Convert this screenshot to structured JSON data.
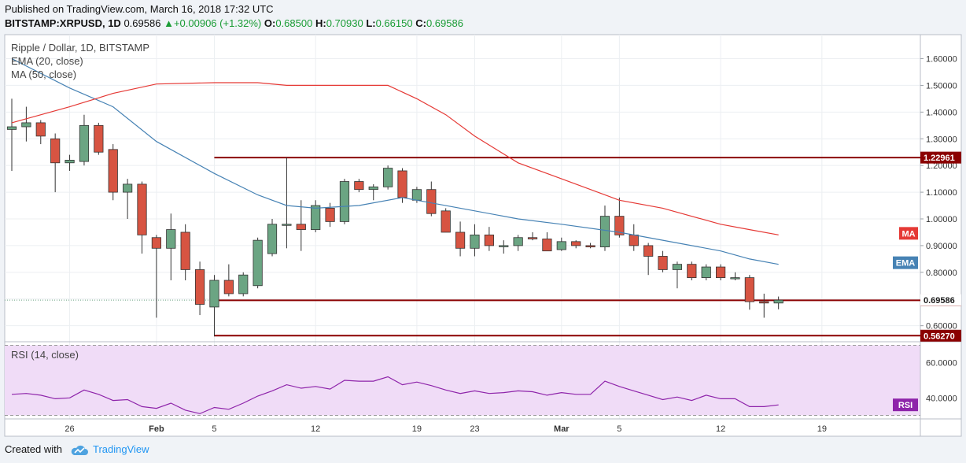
{
  "header": {
    "published": "Published on TradingView.com, March 16, 2018 17:32 UTC",
    "symbol": "BITSTAMP:XRPUSD, 1D",
    "last": "0.69586",
    "change": "+0.00906 (+1.32%)",
    "open_label": "O:",
    "open": "0.68500",
    "high_label": "H:",
    "high": "0.70930",
    "low_label": "L:",
    "low": "0.66150",
    "close_label": "C:",
    "close": "0.69586"
  },
  "legend": {
    "title": "Ripple / Dollar, 1D, BITSTAMP",
    "ema": "EMA (20, close)",
    "ma": "MA (50, close)"
  },
  "footer": {
    "created_with": "Created with",
    "brand": "TradingView"
  },
  "colors": {
    "up": "#6ba583",
    "down": "#d75442",
    "ema": "#4682b4",
    "ma": "#e53935",
    "rsi": "#8e24aa",
    "level": "#8b0000",
    "rsi_band": "#f0dcf7"
  },
  "chart_data": [
    {
      "type": "candlestick",
      "title": "Ripple / Dollar, 1D, BITSTAMP",
      "ylim": [
        0.54,
        1.69
      ],
      "xlim": [
        "2018-01-22",
        "2018-03-22"
      ],
      "y_ticks": [
        "0.60000",
        "0.70000",
        "0.80000",
        "0.90000",
        "1.00000",
        "1.10000",
        "1.20000",
        "1.30000",
        "1.40000",
        "1.50000",
        "1.60000"
      ],
      "x_ticks": [
        {
          "date": "2018-01-26",
          "label": "26"
        },
        {
          "date": "2018-02-01",
          "label": "Feb"
        },
        {
          "date": "2018-02-05",
          "label": "5"
        },
        {
          "date": "2018-02-12",
          "label": "12"
        },
        {
          "date": "2018-02-19",
          "label": "19"
        },
        {
          "date": "2018-02-23",
          "label": "23"
        },
        {
          "date": "2018-03-01",
          "label": "Mar"
        },
        {
          "date": "2018-03-05",
          "label": "5"
        },
        {
          "date": "2018-03-12",
          "label": "12"
        },
        {
          "date": "2018-03-19",
          "label": "19"
        }
      ],
      "candles": [
        {
          "date": "2018-01-22",
          "open": 1.335,
          "high": 1.45,
          "low": 1.18,
          "close": 1.345
        },
        {
          "date": "2018-01-23",
          "open": 1.345,
          "high": 1.42,
          "low": 1.29,
          "close": 1.36
        },
        {
          "date": "2018-01-24",
          "open": 1.36,
          "high": 1.37,
          "low": 1.28,
          "close": 1.31
        },
        {
          "date": "2018-01-25",
          "open": 1.3,
          "high": 1.32,
          "low": 1.1,
          "close": 1.21
        },
        {
          "date": "2018-01-26",
          "open": 1.21,
          "high": 1.24,
          "low": 1.18,
          "close": 1.22
        },
        {
          "date": "2018-01-27",
          "open": 1.215,
          "high": 1.39,
          "low": 1.2,
          "close": 1.35
        },
        {
          "date": "2018-01-28",
          "open": 1.35,
          "high": 1.36,
          "low": 1.24,
          "close": 1.25
        },
        {
          "date": "2018-01-29",
          "open": 1.26,
          "high": 1.28,
          "low": 1.07,
          "close": 1.1
        },
        {
          "date": "2018-01-30",
          "open": 1.1,
          "high": 1.15,
          "low": 1.0,
          "close": 1.13
        },
        {
          "date": "2018-01-31",
          "open": 1.13,
          "high": 1.14,
          "low": 0.87,
          "close": 0.94
        },
        {
          "date": "2018-02-01",
          "open": 0.93,
          "high": 0.94,
          "low": 0.63,
          "close": 0.89
        },
        {
          "date": "2018-02-02",
          "open": 0.89,
          "high": 1.02,
          "low": 0.77,
          "close": 0.96
        },
        {
          "date": "2018-02-03",
          "open": 0.95,
          "high": 0.98,
          "low": 0.77,
          "close": 0.81
        },
        {
          "date": "2018-02-04",
          "open": 0.81,
          "high": 0.84,
          "low": 0.64,
          "close": 0.68
        },
        {
          "date": "2018-02-05",
          "open": 0.67,
          "high": 0.79,
          "low": 0.56,
          "close": 0.77
        },
        {
          "date": "2018-02-06",
          "open": 0.77,
          "high": 0.83,
          "low": 0.71,
          "close": 0.72
        },
        {
          "date": "2018-02-07",
          "open": 0.72,
          "high": 0.8,
          "low": 0.71,
          "close": 0.79
        },
        {
          "date": "2018-02-08",
          "open": 0.75,
          "high": 0.93,
          "low": 0.74,
          "close": 0.92
        },
        {
          "date": "2018-02-09",
          "open": 0.87,
          "high": 1.0,
          "low": 0.86,
          "close": 0.98
        },
        {
          "date": "2018-02-10",
          "open": 0.98,
          "high": 1.23,
          "low": 0.89,
          "close": 0.98
        },
        {
          "date": "2018-02-11",
          "open": 0.98,
          "high": 1.07,
          "low": 0.88,
          "close": 0.96
        },
        {
          "date": "2018-02-12",
          "open": 0.96,
          "high": 1.07,
          "low": 0.95,
          "close": 1.05
        },
        {
          "date": "2018-02-13",
          "open": 1.04,
          "high": 1.06,
          "low": 0.97,
          "close": 0.99
        },
        {
          "date": "2018-02-14",
          "open": 0.99,
          "high": 1.15,
          "low": 0.98,
          "close": 1.14
        },
        {
          "date": "2018-02-15",
          "open": 1.14,
          "high": 1.15,
          "low": 1.1,
          "close": 1.11
        },
        {
          "date": "2018-02-16",
          "open": 1.11,
          "high": 1.13,
          "low": 1.07,
          "close": 1.12
        },
        {
          "date": "2018-02-17",
          "open": 1.12,
          "high": 1.2,
          "low": 1.11,
          "close": 1.19
        },
        {
          "date": "2018-02-18",
          "open": 1.18,
          "high": 1.19,
          "low": 1.06,
          "close": 1.08
        },
        {
          "date": "2018-02-19",
          "open": 1.07,
          "high": 1.12,
          "low": 1.06,
          "close": 1.11
        },
        {
          "date": "2018-02-20",
          "open": 1.11,
          "high": 1.14,
          "low": 1.01,
          "close": 1.02
        },
        {
          "date": "2018-02-21",
          "open": 1.03,
          "high": 1.04,
          "low": 0.95,
          "close": 0.95
        },
        {
          "date": "2018-02-22",
          "open": 0.95,
          "high": 0.99,
          "low": 0.86,
          "close": 0.89
        },
        {
          "date": "2018-02-23",
          "open": 0.89,
          "high": 0.98,
          "low": 0.86,
          "close": 0.94
        },
        {
          "date": "2018-02-24",
          "open": 0.94,
          "high": 0.97,
          "low": 0.88,
          "close": 0.9
        },
        {
          "date": "2018-02-25",
          "open": 0.9,
          "high": 0.92,
          "low": 0.87,
          "close": 0.9
        },
        {
          "date": "2018-02-26",
          "open": 0.9,
          "high": 0.94,
          "low": 0.88,
          "close": 0.93
        },
        {
          "date": "2018-02-27",
          "open": 0.93,
          "high": 0.95,
          "low": 0.92,
          "close": 0.925
        },
        {
          "date": "2018-02-28",
          "open": 0.925,
          "high": 0.95,
          "low": 0.88,
          "close": 0.88
        },
        {
          "date": "2018-03-01",
          "open": 0.885,
          "high": 0.93,
          "low": 0.88,
          "close": 0.915
        },
        {
          "date": "2018-03-02",
          "open": 0.915,
          "high": 0.92,
          "low": 0.89,
          "close": 0.9
        },
        {
          "date": "2018-03-03",
          "open": 0.9,
          "high": 0.91,
          "low": 0.89,
          "close": 0.895
        },
        {
          "date": "2018-03-04",
          "open": 0.895,
          "high": 1.05,
          "low": 0.88,
          "close": 1.01
        },
        {
          "date": "2018-03-05",
          "open": 1.01,
          "high": 1.08,
          "low": 0.93,
          "close": 0.94
        },
        {
          "date": "2018-03-06",
          "open": 0.94,
          "high": 0.98,
          "low": 0.88,
          "close": 0.9
        },
        {
          "date": "2018-03-07",
          "open": 0.9,
          "high": 0.91,
          "low": 0.79,
          "close": 0.86
        },
        {
          "date": "2018-03-08",
          "open": 0.86,
          "high": 0.88,
          "low": 0.8,
          "close": 0.81
        },
        {
          "date": "2018-03-09",
          "open": 0.81,
          "high": 0.84,
          "low": 0.74,
          "close": 0.83
        },
        {
          "date": "2018-03-10",
          "open": 0.83,
          "high": 0.84,
          "low": 0.77,
          "close": 0.78
        },
        {
          "date": "2018-03-11",
          "open": 0.78,
          "high": 0.83,
          "low": 0.77,
          "close": 0.82
        },
        {
          "date": "2018-03-12",
          "open": 0.82,
          "high": 0.83,
          "low": 0.77,
          "close": 0.78
        },
        {
          "date": "2018-03-13",
          "open": 0.78,
          "high": 0.8,
          "low": 0.77,
          "close": 0.78
        },
        {
          "date": "2018-03-14",
          "open": 0.78,
          "high": 0.79,
          "low": 0.66,
          "close": 0.69
        },
        {
          "date": "2018-03-15",
          "open": 0.69,
          "high": 0.72,
          "low": 0.63,
          "close": 0.685
        },
        {
          "date": "2018-03-16",
          "open": 0.685,
          "high": 0.7093,
          "low": 0.6615,
          "close": 0.69586
        }
      ],
      "ema": {
        "name": "EMA (20, close)",
        "points": [
          [
            "2018-01-22",
            1.6
          ],
          [
            "2018-01-26",
            1.49
          ],
          [
            "2018-01-29",
            1.42
          ],
          [
            "2018-02-01",
            1.29
          ],
          [
            "2018-02-05",
            1.17
          ],
          [
            "2018-02-08",
            1.09
          ],
          [
            "2018-02-10",
            1.05
          ],
          [
            "2018-02-12",
            1.04
          ],
          [
            "2018-02-15",
            1.05
          ],
          [
            "2018-02-18",
            1.08
          ],
          [
            "2018-02-20",
            1.06
          ],
          [
            "2018-02-23",
            1.03
          ],
          [
            "2018-02-26",
            1.0
          ],
          [
            "2018-03-01",
            0.98
          ],
          [
            "2018-03-05",
            0.95
          ],
          [
            "2018-03-08",
            0.92
          ],
          [
            "2018-03-12",
            0.88
          ],
          [
            "2018-03-14",
            0.85
          ],
          [
            "2018-03-16",
            0.83
          ]
        ]
      },
      "ma": {
        "name": "MA (50, close)",
        "points": [
          [
            "2018-01-22",
            1.36
          ],
          [
            "2018-01-26",
            1.42
          ],
          [
            "2018-01-29",
            1.47
          ],
          [
            "2018-02-01",
            1.505
          ],
          [
            "2018-02-05",
            1.51
          ],
          [
            "2018-02-08",
            1.51
          ],
          [
            "2018-02-10",
            1.5
          ],
          [
            "2018-02-14",
            1.5
          ],
          [
            "2018-02-17",
            1.5
          ],
          [
            "2018-02-19",
            1.45
          ],
          [
            "2018-02-21",
            1.39
          ],
          [
            "2018-02-23",
            1.31
          ],
          [
            "2018-02-26",
            1.21
          ],
          [
            "2018-03-01",
            1.15
          ],
          [
            "2018-03-05",
            1.07
          ],
          [
            "2018-03-08",
            1.04
          ],
          [
            "2018-03-12",
            0.98
          ],
          [
            "2018-03-14",
            0.96
          ],
          [
            "2018-03-16",
            0.94
          ]
        ]
      },
      "levels": [
        {
          "from": "2018-02-05",
          "value": 1.22961,
          "label": "1.22961"
        },
        {
          "from": "2018-02-05",
          "value": 0.695,
          "label": "0.69500"
        },
        {
          "from": "2018-02-05",
          "value": 0.5627,
          "label": "0.56270"
        }
      ],
      "last_price": {
        "value": 0.69586,
        "label": "0.69586"
      },
      "tags": [
        {
          "value": 0.94,
          "label": "MA",
          "color": "ma"
        },
        {
          "value": 0.83,
          "label": "EMA",
          "color": "ema"
        }
      ]
    },
    {
      "type": "line",
      "title": "RSI (14, close)",
      "ylim": [
        28,
        72
      ],
      "band": [
        30,
        70
      ],
      "y_ticks": [
        "40.0000",
        "60.0000"
      ],
      "series": [
        {
          "name": "RSI",
          "x": [
            "2018-01-22",
            "2018-01-23",
            "2018-01-24",
            "2018-01-25",
            "2018-01-26",
            "2018-01-27",
            "2018-01-28",
            "2018-01-29",
            "2018-01-30",
            "2018-01-31",
            "2018-02-01",
            "2018-02-02",
            "2018-02-03",
            "2018-02-04",
            "2018-02-05",
            "2018-02-06",
            "2018-02-07",
            "2018-02-08",
            "2018-02-09",
            "2018-02-10",
            "2018-02-11",
            "2018-02-12",
            "2018-02-13",
            "2018-02-14",
            "2018-02-15",
            "2018-02-16",
            "2018-02-17",
            "2018-02-18",
            "2018-02-19",
            "2018-02-20",
            "2018-02-21",
            "2018-02-22",
            "2018-02-23",
            "2018-02-24",
            "2018-02-25",
            "2018-02-26",
            "2018-02-27",
            "2018-02-28",
            "2018-03-01",
            "2018-03-02",
            "2018-03-03",
            "2018-03-04",
            "2018-03-05",
            "2018-03-06",
            "2018-03-07",
            "2018-03-08",
            "2018-03-09",
            "2018-03-10",
            "2018-03-11",
            "2018-03-12",
            "2018-03-13",
            "2018-03-14",
            "2018-03-15",
            "2018-03-16"
          ],
          "values": [
            42,
            42.5,
            41.5,
            39.5,
            40,
            44.5,
            42,
            38.5,
            39,
            35,
            34,
            37,
            33,
            31,
            34.5,
            33.5,
            37,
            41,
            44,
            47.5,
            45.5,
            46.5,
            45,
            50,
            49.5,
            49.5,
            52,
            47.5,
            49,
            47,
            44.5,
            42.5,
            44,
            42.5,
            43,
            44,
            43.5,
            41.5,
            43,
            42,
            42,
            49.5,
            46.5,
            44,
            41.5,
            39,
            40.5,
            38.5,
            41.5,
            39.5,
            39.5,
            35,
            35,
            36
          ]
        }
      ],
      "last_tag": "RSI"
    }
  ]
}
